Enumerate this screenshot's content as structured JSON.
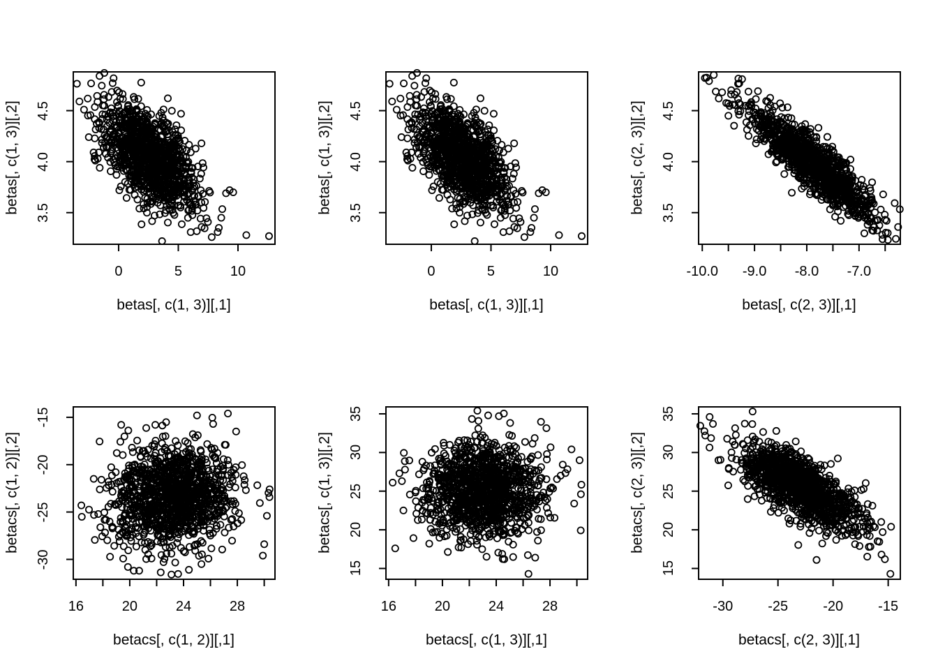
{
  "figure": {
    "background": "#ffffff",
    "foreground": "#000000",
    "grid_on": false,
    "legend": "none",
    "rows": 2,
    "cols": 3
  },
  "chart_data": [
    {
      "type": "scatter",
      "title": "",
      "xlabel": "betas[, c(1, 3)][,1]",
      "ylabel": "betas[, c(1, 3)][,2]",
      "xlim": [
        -3.8,
        13.1
      ],
      "ylim": [
        3.19,
        4.88
      ],
      "x_ticks": {
        "values": [
          0,
          5,
          10
        ],
        "labels": [
          "0",
          "5",
          "10"
        ]
      },
      "y_ticks": {
        "values": [
          3.5,
          4.0,
          4.5
        ],
        "labels": [
          "3.5",
          "4.0",
          "4.5"
        ]
      },
      "marker": {
        "shape": "open-circle",
        "color": "#000000"
      },
      "points_summary": {
        "n": 1150,
        "x_mean": 2.7,
        "x_sd": 1.95,
        "y_mean": 4.03,
        "y_sd": 0.26,
        "correlation": -0.55,
        "seed": 20
      },
      "outlier_points": [
        [
          12.6,
          3.27
        ],
        [
          10.7,
          3.28
        ],
        [
          9.0,
          3.69
        ],
        [
          9.3,
          3.72
        ],
        [
          9.6,
          3.7
        ],
        [
          8.6,
          3.45
        ],
        [
          8.3,
          3.31
        ],
        [
          7.8,
          3.26
        ],
        [
          -1.6,
          4.84
        ],
        [
          -1.2,
          4.87
        ],
        [
          -0.5,
          4.77
        ],
        [
          -2.9,
          4.51
        ],
        [
          -2.5,
          4.24
        ]
      ]
    },
    {
      "type": "scatter",
      "title": "",
      "xlabel": "betas[, c(1, 3)][,1]",
      "ylabel": "betas[, c(1, 3)][,2]",
      "xlim": [
        -3.8,
        13.1
      ],
      "ylim": [
        3.19,
        4.88
      ],
      "x_ticks": {
        "values": [
          0,
          5,
          10
        ],
        "labels": [
          "0",
          "5",
          "10"
        ]
      },
      "y_ticks": {
        "values": [
          3.5,
          4.0,
          4.5
        ],
        "labels": [
          "3.5",
          "4.0",
          "4.5"
        ]
      },
      "marker": {
        "shape": "open-circle",
        "color": "#000000"
      },
      "points_summary": {
        "n": 1150,
        "x_mean": 2.7,
        "x_sd": 1.95,
        "y_mean": 4.03,
        "y_sd": 0.26,
        "correlation": -0.55,
        "seed": 20
      },
      "outlier_points": [
        [
          12.6,
          3.27
        ],
        [
          10.7,
          3.28
        ],
        [
          9.0,
          3.69
        ],
        [
          9.3,
          3.72
        ],
        [
          9.6,
          3.7
        ],
        [
          8.6,
          3.45
        ],
        [
          8.3,
          3.31
        ],
        [
          7.8,
          3.26
        ],
        [
          -1.6,
          4.84
        ],
        [
          -1.2,
          4.87
        ],
        [
          -0.5,
          4.77
        ],
        [
          -2.9,
          4.51
        ],
        [
          -2.5,
          4.24
        ]
      ]
    },
    {
      "type": "scatter",
      "title": "",
      "xlabel": "betas[, c(2, 3)][,1]",
      "ylabel": "betas[, c(2, 3)][,2]",
      "xlim": [
        -10.07,
        -6.21
      ],
      "ylim": [
        3.19,
        4.88
      ],
      "x_ticks": {
        "values": [
          -10,
          -9.5,
          -9,
          -8.5,
          -8,
          -7.5,
          -7,
          -6.5
        ],
        "labels": [
          "-10.0",
          "",
          "-9.0",
          "",
          "-8.0",
          "",
          "-7.0",
          ""
        ]
      },
      "y_ticks": {
        "values": [
          3.5,
          4.0,
          4.5
        ],
        "labels": [
          "3.5",
          "4.0",
          "4.5"
        ]
      },
      "marker": {
        "shape": "open-circle",
        "color": "#000000"
      },
      "points_summary": {
        "n": 1150,
        "x_mean": -7.88,
        "x_sd": 0.58,
        "y_mean": 3.98,
        "y_sd": 0.27,
        "correlation": -0.87,
        "seed": 77
      },
      "outlier_points": [
        [
          -9.95,
          4.82
        ],
        [
          -9.87,
          4.79
        ],
        [
          -9.78,
          4.85
        ],
        [
          -9.62,
          4.68
        ],
        [
          -9.45,
          4.66
        ],
        [
          -9.5,
          4.45
        ],
        [
          -6.55,
          3.24
        ],
        [
          -6.45,
          3.3
        ],
        [
          -6.5,
          3.43
        ],
        [
          -6.7,
          3.42
        ],
        [
          -7.35,
          3.42
        ]
      ]
    },
    {
      "type": "scatter",
      "title": "",
      "xlabel": "betacs[, c(1, 2)][,1]",
      "ylabel": "betacs[, c(1, 2)][,2]",
      "xlim": [
        15.8,
        30.8
      ],
      "ylim": [
        -32.1,
        -13.9
      ],
      "x_ticks": {
        "values": [
          16,
          18,
          20,
          22,
          24,
          26,
          28,
          30
        ],
        "labels": [
          "16",
          "",
          "20",
          "",
          "24",
          "",
          "28",
          ""
        ]
      },
      "y_ticks": {
        "values": [
          -30,
          -25,
          -20,
          -15
        ],
        "labels": [
          "-30",
          "-25",
          "-20",
          "-15"
        ]
      },
      "marker": {
        "shape": "open-circle",
        "color": "#000000"
      },
      "points_summary": {
        "n": 1200,
        "x_mean": 23.2,
        "x_sd": 2.2,
        "y_mean": -23.3,
        "y_sd": 2.75,
        "correlation": 0.05,
        "seed": 101
      },
      "outlier_points": [
        [
          16.4,
          -24.3
        ],
        [
          30.4,
          -22.6
        ],
        [
          30.2,
          -25.4
        ],
        [
          29.9,
          -29.6
        ],
        [
          30.0,
          -28.4
        ],
        [
          20.3,
          -31.2
        ],
        [
          20.7,
          -31.2
        ],
        [
          23.1,
          -31.6
        ],
        [
          24.4,
          -31.1
        ],
        [
          27.3,
          -14.6
        ],
        [
          26.2,
          -15.7
        ],
        [
          25.0,
          -14.8
        ],
        [
          21.9,
          -15.8
        ]
      ]
    },
    {
      "type": "scatter",
      "title": "",
      "xlabel": "betacs[, c(1, 3)][,1]",
      "ylabel": "betacs[, c(1, 3)][,2]",
      "xlim": [
        15.8,
        30.8
      ],
      "ylim": [
        13.6,
        35.9
      ],
      "x_ticks": {
        "values": [
          16,
          18,
          20,
          22,
          24,
          26,
          28,
          30
        ],
        "labels": [
          "16",
          "",
          "20",
          "",
          "24",
          "",
          "28",
          ""
        ]
      },
      "y_ticks": {
        "values": [
          15,
          20,
          25,
          30,
          35
        ],
        "labels": [
          "15",
          "20",
          "25",
          "30",
          "35"
        ]
      },
      "marker": {
        "shape": "open-circle",
        "color": "#000000"
      },
      "points_summary": {
        "n": 1200,
        "x_mean": 23.0,
        "x_sd": 2.2,
        "y_mean": 25.2,
        "y_sd": 2.95,
        "correlation": -0.02,
        "seed": 202
      },
      "outlier_points": [
        [
          16.3,
          26.1
        ],
        [
          26.4,
          14.3
        ],
        [
          24.6,
          16.2
        ],
        [
          26.9,
          16.4
        ],
        [
          22.6,
          35.4
        ],
        [
          23.4,
          34.8
        ],
        [
          24.2,
          34.7
        ],
        [
          29.6,
          30.4
        ],
        [
          30.2,
          29.0
        ],
        [
          30.3,
          24.6
        ],
        [
          29.8,
          23.4
        ],
        [
          17.1,
          22.5
        ],
        [
          16.8,
          27.3
        ]
      ]
    },
    {
      "type": "scatter",
      "title": "",
      "xlabel": "betacs[, c(2, 3)][,1]",
      "ylabel": "betacs[, c(2, 3)][,2]",
      "xlim": [
        -32.2,
        -13.9
      ],
      "ylim": [
        13.6,
        35.9
      ],
      "x_ticks": {
        "values": [
          -30,
          -25,
          -20,
          -15
        ],
        "labels": [
          "-30",
          "-25",
          "-20",
          "-15"
        ]
      },
      "y_ticks": {
        "values": [
          15,
          20,
          25,
          30,
          35
        ],
        "labels": [
          "15",
          "20",
          "25",
          "30",
          "35"
        ]
      },
      "marker": {
        "shape": "open-circle",
        "color": "#000000"
      },
      "points_summary": {
        "n": 1200,
        "x_mean": -22.9,
        "x_sd": 2.65,
        "y_mean": 25.4,
        "y_sd": 2.75,
        "correlation": -0.73,
        "seed": 303
      },
      "outlier_points": [
        [
          -31.6,
          32.2
        ],
        [
          -31.2,
          34.6
        ],
        [
          -30.9,
          33.7
        ],
        [
          -27.3,
          35.3
        ],
        [
          -30.4,
          29.0
        ],
        [
          -15.3,
          16.2
        ],
        [
          -14.8,
          14.3
        ],
        [
          -16.9,
          19.9
        ],
        [
          -15.5,
          19.7
        ],
        [
          -17.6,
          17.9
        ],
        [
          -21.5,
          16.1
        ]
      ]
    }
  ]
}
